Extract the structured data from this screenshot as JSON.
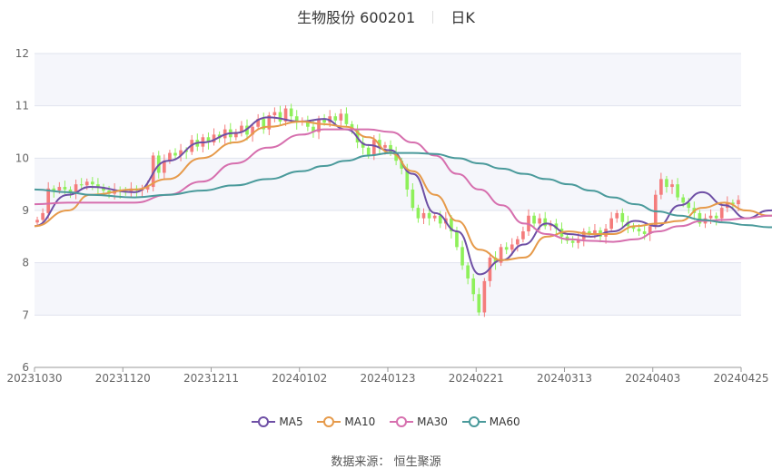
{
  "header": {
    "stock_name": "生物股份 600201",
    "period": "日K"
  },
  "source_label": "数据来源：",
  "source_value": "恒生聚源",
  "colors": {
    "up": "#f47c7c",
    "down": "#8ef05a",
    "ma5": "#6e4fa5",
    "ma10": "#e69a4a",
    "ma30": "#d66fae",
    "ma60": "#4a9a9b",
    "band_light": "#f5f6fb"
  },
  "chart_data": {
    "type": "candlestick",
    "title": "生物股份 600201",
    "subtitle": "日K",
    "ylim": [
      6,
      12
    ],
    "y_ticks": [
      6,
      7,
      8,
      9,
      10,
      11,
      12
    ],
    "x_tick_labels": [
      "20231030",
      "20231120",
      "20231211",
      "20240102",
      "20240123",
      "20240221",
      "20240313",
      "20240403",
      "20240425"
    ],
    "legend": [
      "MA5",
      "MA10",
      "MA30",
      "MA60"
    ],
    "legend_position": "bottom",
    "candles_close": [
      8.82,
      8.95,
      9.42,
      9.38,
      9.45,
      9.4,
      9.35,
      9.5,
      9.48,
      9.55,
      9.5,
      9.45,
      9.38,
      9.32,
      9.4,
      9.36,
      9.34,
      9.42,
      9.38,
      9.4,
      9.45,
      10.05,
      9.72,
      9.95,
      10.1,
      10.05,
      10.15,
      10.12,
      10.35,
      10.22,
      10.4,
      10.3,
      10.45,
      10.38,
      10.55,
      10.4,
      10.5,
      10.62,
      10.45,
      10.6,
      10.75,
      10.55,
      10.82,
      10.88,
      10.7,
      10.95,
      10.8,
      10.68,
      10.72,
      10.6,
      10.5,
      10.75,
      10.68,
      10.8,
      10.72,
      10.85,
      10.65,
      10.55,
      10.3,
      10.2,
      10.05,
      10.35,
      10.2,
      10.25,
      10.1,
      9.95,
      9.8,
      9.4,
      9.05,
      8.85,
      8.95,
      8.85,
      8.9,
      8.75,
      8.85,
      8.6,
      8.3,
      7.95,
      7.7,
      7.4,
      7.05,
      7.65,
      8.1,
      8.0,
      8.3,
      8.25,
      8.35,
      8.45,
      8.6,
      8.9,
      8.75,
      8.85,
      8.7,
      8.75,
      8.65,
      8.5,
      8.42,
      8.38,
      8.45,
      8.6,
      8.55,
      8.62,
      8.5,
      8.65,
      8.85,
      8.95,
      8.78,
      8.7,
      8.65,
      8.6,
      8.55,
      8.7,
      9.3,
      9.6,
      9.45,
      9.5,
      9.25,
      9.15,
      9.05,
      8.95,
      8.75,
      8.85,
      8.9,
      8.85,
      9.05,
      9.15,
      9.12,
      9.2
    ],
    "series": [
      {
        "name": "MA5",
        "points": [
          [
            0,
            8.7
          ],
          [
            6,
            9.3
          ],
          [
            10,
            9.45
          ],
          [
            18,
            9.35
          ],
          [
            24,
            9.95
          ],
          [
            30,
            10.3
          ],
          [
            36,
            10.48
          ],
          [
            42,
            10.78
          ],
          [
            48,
            10.7
          ],
          [
            52,
            10.75
          ],
          [
            56,
            10.55
          ],
          [
            60,
            10.25
          ],
          [
            64,
            10.15
          ],
          [
            68,
            9.7
          ],
          [
            72,
            8.95
          ],
          [
            76,
            8.6
          ],
          [
            80,
            7.78
          ],
          [
            84,
            8.05
          ],
          [
            88,
            8.35
          ],
          [
            92,
            8.75
          ],
          [
            96,
            8.55
          ],
          [
            100,
            8.5
          ],
          [
            104,
            8.6
          ],
          [
            108,
            8.8
          ],
          [
            112,
            8.7
          ],
          [
            116,
            9.1
          ],
          [
            120,
            9.35
          ],
          [
            124,
            9.1
          ],
          [
            128,
            8.85
          ],
          [
            132,
            9.0
          ],
          [
            136,
            9.1
          ]
        ]
      },
      {
        "name": "MA10",
        "points": [
          [
            0,
            8.7
          ],
          [
            6,
            9.0
          ],
          [
            10,
            9.3
          ],
          [
            18,
            9.4
          ],
          [
            24,
            9.6
          ],
          [
            30,
            10.0
          ],
          [
            36,
            10.3
          ],
          [
            42,
            10.6
          ],
          [
            48,
            10.7
          ],
          [
            52,
            10.65
          ],
          [
            56,
            10.6
          ],
          [
            60,
            10.4
          ],
          [
            64,
            10.1
          ],
          [
            68,
            9.75
          ],
          [
            72,
            9.3
          ],
          [
            76,
            8.8
          ],
          [
            80,
            8.25
          ],
          [
            84,
            8.05
          ],
          [
            88,
            8.1
          ],
          [
            92,
            8.5
          ],
          [
            96,
            8.6
          ],
          [
            100,
            8.55
          ],
          [
            104,
            8.55
          ],
          [
            108,
            8.7
          ],
          [
            112,
            8.75
          ],
          [
            116,
            8.8
          ],
          [
            120,
            9.05
          ],
          [
            124,
            9.15
          ],
          [
            128,
            9.0
          ],
          [
            132,
            8.9
          ],
          [
            136,
            8.95
          ]
        ]
      },
      {
        "name": "MA30",
        "points": [
          [
            0,
            9.12
          ],
          [
            6,
            9.15
          ],
          [
            10,
            9.15
          ],
          [
            18,
            9.15
          ],
          [
            24,
            9.3
          ],
          [
            30,
            9.55
          ],
          [
            36,
            9.9
          ],
          [
            42,
            10.2
          ],
          [
            48,
            10.45
          ],
          [
            52,
            10.55
          ],
          [
            56,
            10.55
          ],
          [
            60,
            10.55
          ],
          [
            64,
            10.5
          ],
          [
            68,
            10.3
          ],
          [
            72,
            10.05
          ],
          [
            76,
            9.7
          ],
          [
            80,
            9.4
          ],
          [
            84,
            9.1
          ],
          [
            88,
            8.75
          ],
          [
            92,
            8.55
          ],
          [
            96,
            8.45
          ],
          [
            100,
            8.42
          ],
          [
            104,
            8.4
          ],
          [
            108,
            8.45
          ],
          [
            112,
            8.6
          ],
          [
            116,
            8.7
          ],
          [
            120,
            8.8
          ],
          [
            124,
            8.82
          ],
          [
            128,
            8.85
          ],
          [
            132,
            8.9
          ],
          [
            136,
            8.92
          ]
        ]
      },
      {
        "name": "MA60",
        "points": [
          [
            0,
            9.4
          ],
          [
            6,
            9.35
          ],
          [
            10,
            9.3
          ],
          [
            18,
            9.25
          ],
          [
            24,
            9.3
          ],
          [
            30,
            9.38
          ],
          [
            36,
            9.48
          ],
          [
            42,
            9.6
          ],
          [
            48,
            9.75
          ],
          [
            52,
            9.85
          ],
          [
            56,
            9.95
          ],
          [
            60,
            10.05
          ],
          [
            64,
            10.1
          ],
          [
            68,
            10.1
          ],
          [
            72,
            10.08
          ],
          [
            76,
            10.0
          ],
          [
            80,
            9.9
          ],
          [
            84,
            9.8
          ],
          [
            88,
            9.7
          ],
          [
            92,
            9.6
          ],
          [
            96,
            9.5
          ],
          [
            100,
            9.38
          ],
          [
            104,
            9.25
          ],
          [
            108,
            9.12
          ],
          [
            112,
            8.98
          ],
          [
            116,
            8.9
          ],
          [
            120,
            8.82
          ],
          [
            124,
            8.77
          ],
          [
            128,
            8.72
          ],
          [
            132,
            8.68
          ],
          [
            136,
            8.67
          ]
        ]
      }
    ]
  }
}
